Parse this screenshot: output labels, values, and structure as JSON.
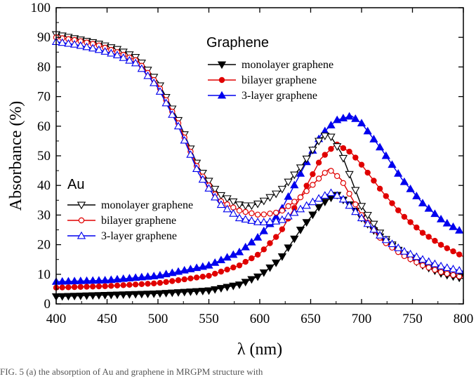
{
  "chart_data": {
    "type": "line",
    "xlabel": "λ (nm)",
    "ylabel": "Absorbance (%)",
    "xlim": [
      400,
      800
    ],
    "ylim": [
      0,
      100
    ],
    "xticks": [
      400,
      450,
      500,
      550,
      600,
      650,
      700,
      750,
      800
    ],
    "yticks": [
      0,
      10,
      20,
      30,
      40,
      50,
      60,
      70,
      80,
      90,
      100
    ],
    "grid": false,
    "legends": [
      {
        "title": "Graphene",
        "placement": "top-right",
        "entries": [
          "monolayer graphene",
          "bilayer graphene",
          "3-layer graphene"
        ]
      },
      {
        "title": "Au",
        "placement": "center-left",
        "entries": [
          "monolayer graphene",
          "bilayer graphene",
          "3-layer graphene"
        ]
      }
    ],
    "series": [
      {
        "name": "monolayer graphene",
        "group": "Graphene",
        "color": "#000000",
        "marker": "triangle-down-filled",
        "x": [
          400,
          450,
          500,
          550,
          580,
          600,
          620,
          640,
          660,
          675,
          690,
          700,
          720,
          740,
          760,
          780,
          800
        ],
        "y": [
          2.5,
          3.0,
          3.5,
          4.5,
          6.5,
          9.5,
          15,
          25,
          33.5,
          37,
          33,
          29,
          22,
          17,
          13,
          10,
          8.5
        ]
      },
      {
        "name": "bilayer graphene",
        "group": "Graphene",
        "color": "#e00000",
        "marker": "circle-filled",
        "x": [
          400,
          450,
          500,
          550,
          580,
          600,
          620,
          640,
          660,
          675,
          690,
          700,
          720,
          740,
          760,
          780,
          800
        ],
        "y": [
          5.5,
          6.0,
          7.0,
          9.5,
          13,
          17,
          24,
          36,
          49,
          54,
          51,
          47,
          38,
          30,
          24,
          19.5,
          16
        ]
      },
      {
        "name": "3-layer graphene",
        "group": "Graphene",
        "color": "#0000ee",
        "marker": "triangle-up-filled",
        "x": [
          400,
          450,
          500,
          550,
          580,
          600,
          620,
          640,
          660,
          675,
          690,
          700,
          720,
          740,
          760,
          780,
          800
        ],
        "y": [
          7.5,
          8.0,
          9.5,
          13,
          17.5,
          23,
          31,
          44,
          57,
          62,
          63.5,
          61,
          52,
          42,
          34,
          28,
          24
        ]
      },
      {
        "name": "monolayer graphene",
        "group": "Au",
        "color": "#000000",
        "marker": "triangle-down-open",
        "x": [
          400,
          420,
          440,
          460,
          480,
          500,
          520,
          540,
          560,
          580,
          590,
          600,
          620,
          640,
          660,
          668,
          680,
          700,
          720,
          740,
          760,
          780,
          800
        ],
        "y": [
          91,
          89.5,
          88,
          86,
          83,
          75,
          62,
          46,
          37,
          33.5,
          33,
          34,
          38,
          46,
          56,
          57.5,
          51,
          33,
          23,
          17,
          13.5,
          11,
          9
        ]
      },
      {
        "name": "bilayer graphene",
        "group": "Au",
        "color": "#e00000",
        "marker": "circle-open",
        "x": [
          400,
          420,
          440,
          460,
          480,
          500,
          520,
          540,
          560,
          580,
          600,
          620,
          640,
          660,
          668,
          680,
          700,
          720,
          740,
          760,
          780,
          800
        ],
        "y": [
          90,
          89,
          87.5,
          85,
          82,
          74,
          61,
          45,
          35,
          31.5,
          30,
          31,
          36,
          43,
          45.5,
          42,
          30,
          21.5,
          16.5,
          13,
          10.5,
          9
        ]
      },
      {
        "name": "3-layer graphene",
        "group": "Au",
        "color": "#0000ee",
        "marker": "triangle-up-open",
        "x": [
          400,
          420,
          440,
          460,
          480,
          500,
          520,
          540,
          560,
          580,
          600,
          620,
          640,
          660,
          670,
          680,
          700,
          720,
          740,
          760,
          780,
          800
        ],
        "y": [
          88.5,
          87.5,
          86,
          84,
          81,
          73,
          60,
          44,
          34,
          29,
          27.5,
          28,
          32,
          36,
          37.5,
          36,
          29,
          22.5,
          18,
          15,
          12.5,
          11
        ]
      }
    ]
  },
  "caption": "FIG. 5 (a) the absorption of Au and graphene in MRGPM structure with"
}
